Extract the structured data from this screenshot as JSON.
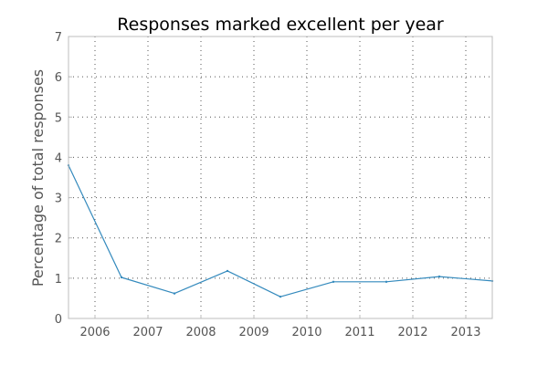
{
  "chart_data": {
    "type": "line",
    "title": "Responses marked excellent per year",
    "xlabel": "",
    "ylabel": "Percentage of total responses",
    "x": [
      2005.5,
      2006.5,
      2007.5,
      2008.5,
      2009.5,
      2010.5,
      2011.5,
      2012.5,
      2013.5
    ],
    "series": [
      {
        "values": [
          3.8,
          1.02,
          0.62,
          1.18,
          0.54,
          0.91,
          0.91,
          1.04,
          0.93
        ]
      }
    ],
    "xticks": [
      2006,
      2007,
      2008,
      2009,
      2010,
      2011,
      2012,
      2013
    ],
    "yticks": [
      0,
      1,
      2,
      3,
      4,
      5,
      6,
      7
    ],
    "xlim": [
      2005.5,
      2013.5
    ],
    "ylim": [
      0,
      7
    ],
    "grid": true,
    "legend": "none",
    "line_color": "#348abd"
  }
}
